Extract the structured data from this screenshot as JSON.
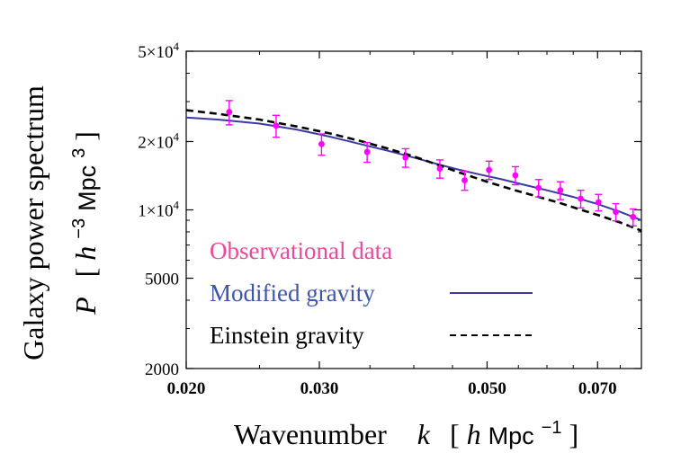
{
  "chart_data": {
    "type": "scatter",
    "xlabel": {
      "main": "Wavenumber",
      "var": "k",
      "unit_prefix": "[",
      "unit_h": "h",
      "unit_mpc": "Mpc",
      "unit_exp": "−1",
      "unit_suffix": "]"
    },
    "ylabel": {
      "line1": "Galaxy power spectrum",
      "var": "P",
      "unit_prefix": "[",
      "unit_h": "h",
      "unit_h_exp": "−3",
      "unit_mpc": "Mpc",
      "unit_mpc_exp": "3",
      "unit_suffix": "]"
    },
    "x_scale": "log",
    "y_scale": "log",
    "xlim": [
      0.02,
      0.08
    ],
    "ylim": [
      2000,
      50000
    ],
    "x_ticks": [
      {
        "value": 0.02,
        "label": "0.020"
      },
      {
        "value": 0.03,
        "label": "0.030"
      },
      {
        "value": 0.05,
        "label": "0.050"
      },
      {
        "value": 0.07,
        "label": "0.070"
      }
    ],
    "y_ticks": [
      {
        "value": 2000,
        "label": "2000"
      },
      {
        "value": 5000,
        "label": "5000"
      },
      {
        "value": 10000,
        "label": "1×10",
        "exp": "4"
      },
      {
        "value": 20000,
        "label": "2×10",
        "exp": "4"
      },
      {
        "value": 50000,
        "label": "5×10",
        "exp": "4"
      }
    ],
    "grid": false,
    "legend_placement": "bottom-left",
    "series": [
      {
        "name": "Observational data",
        "kind": "points",
        "color": "#ff00ff",
        "legend_color": "#e8499a",
        "x": [
          0.0228,
          0.0263,
          0.0302,
          0.0347,
          0.039,
          0.0433,
          0.0467,
          0.0503,
          0.0545,
          0.0585,
          0.0625,
          0.0665,
          0.0702,
          0.074,
          0.078
        ],
        "y": [
          27000,
          23500,
          19500,
          18000,
          17000,
          15200,
          13500,
          15000,
          14200,
          12500,
          12200,
          11200,
          10800,
          9800,
          9300
        ],
        "yerr": [
          3300,
          2600,
          2100,
          1800,
          1600,
          1400,
          1300,
          1400,
          1300,
          1100,
          1100,
          1000,
          900,
          850,
          800
        ]
      },
      {
        "name": "Modified gravity",
        "kind": "line",
        "style": "solid",
        "color": "#3a3aa0",
        "legend_color": "#3f55a8",
        "x": [
          0.02,
          0.022,
          0.025,
          0.028,
          0.031,
          0.034,
          0.037,
          0.04,
          0.043,
          0.046,
          0.049,
          0.052,
          0.056,
          0.06,
          0.065,
          0.07,
          0.075,
          0.08
        ],
        "y": [
          25500,
          25000,
          24000,
          22600,
          21000,
          19500,
          18200,
          17000,
          15900,
          15000,
          14300,
          13700,
          12900,
          12200,
          11400,
          10600,
          9800,
          9000
        ]
      },
      {
        "name": "Einstein gravity",
        "kind": "line",
        "style": "dashed",
        "color": "#000000",
        "legend_color": "#000000",
        "x": [
          0.02,
          0.022,
          0.025,
          0.028,
          0.031,
          0.034,
          0.037,
          0.04,
          0.043,
          0.046,
          0.05,
          0.054,
          0.058,
          0.062,
          0.066,
          0.07,
          0.075,
          0.08
        ],
        "y": [
          27500,
          26500,
          25000,
          23300,
          21700,
          20100,
          18600,
          17200,
          15800,
          14600,
          13300,
          12300,
          11500,
          10800,
          10100,
          9500,
          8800,
          8100
        ]
      }
    ]
  }
}
